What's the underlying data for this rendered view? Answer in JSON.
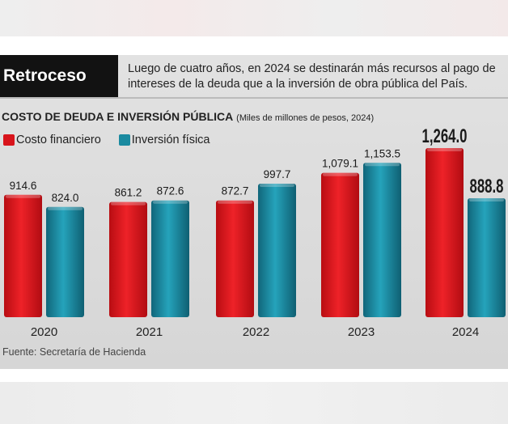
{
  "header": {
    "title": "Retroceso",
    "subtitle": "Luego de cuatro años, en 2024 se destinarán más recursos al pago de intereses de la deuda que a la inversión de obra pública del País."
  },
  "chart_data": {
    "type": "bar",
    "title": "COSTO DE DEUDA E INVERSIÓN PÚBLICA",
    "units": "(Miles de millones de pesos, 2024)",
    "categories": [
      "2020",
      "2021",
      "2022",
      "2023",
      "2024"
    ],
    "series": [
      {
        "name": "Costo financiero",
        "color": "#d8141b",
        "values": [
          914.6,
          861.2,
          872.7,
          1079.1,
          1264.0
        ],
        "labels": [
          "914.6",
          "861.2",
          "872.7",
          "1,079.1",
          "1,264.0"
        ]
      },
      {
        "name": "Inversión física",
        "color": "#1a8aa0",
        "values": [
          824.0,
          872.6,
          997.7,
          1153.5,
          888.8
        ],
        "labels": [
          "824.0",
          "872.6",
          "997.7",
          "1,153.5",
          "888.8"
        ]
      }
    ],
    "ylim": [
      0,
      1264.0
    ],
    "legend": "top-left",
    "grid": false,
    "source": "Fuente: Secretaría de Hacienda"
  }
}
